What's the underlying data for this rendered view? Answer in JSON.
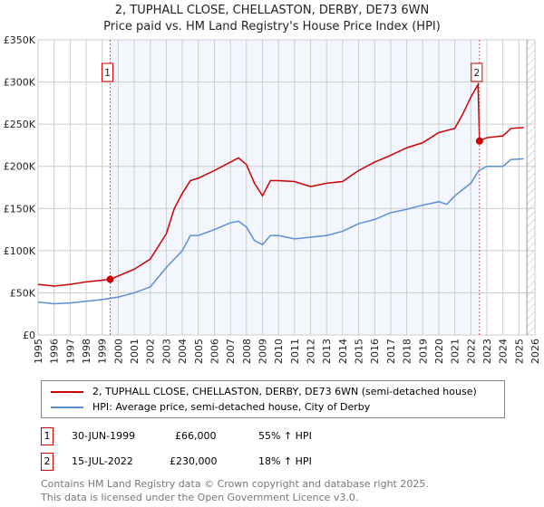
{
  "chart_data": {
    "type": "line",
    "title": "2, TUPHALL CLOSE, CHELLASTON, DERBY, DE73 6WN",
    "subtitle": "Price paid vs. HM Land Registry's House Price Index (HPI)",
    "xlim": [
      1995,
      2026
    ],
    "ylim": [
      0,
      350000
    ],
    "yticks": [
      "£0",
      "£50K",
      "£100K",
      "£150K",
      "£200K",
      "£250K",
      "£300K",
      "£350K"
    ],
    "xticks": [
      "1995",
      "1996",
      "1997",
      "1998",
      "1999",
      "2000",
      "2001",
      "2002",
      "2003",
      "2004",
      "2005",
      "2006",
      "2007",
      "2008",
      "2009",
      "2010",
      "2011",
      "2012",
      "2013",
      "2014",
      "2015",
      "2016",
      "2017",
      "2018",
      "2019",
      "2020",
      "2021",
      "2022",
      "2023",
      "2024",
      "2025",
      "2026"
    ],
    "series": [
      {
        "name": "2, TUPHALL CLOSE, CHELLASTON, DERBY, DE73 6WN (semi-detached house)",
        "color": "#cc0000",
        "x": [
          1995,
          1996,
          1997,
          1998,
          1999.5,
          2000,
          2001,
          2002,
          2003,
          2003.5,
          2004,
          2004.5,
          2005,
          2006,
          2007,
          2007.5,
          2008,
          2008.5,
          2009,
          2009.5,
          2010,
          2011,
          2012,
          2013,
          2014,
          2015,
          2016,
          2017,
          2018,
          2019,
          2020,
          2021,
          2021.5,
          2022,
          2022.45,
          2022.54,
          2023,
          2024,
          2024.5,
          2025.3
        ],
        "y": [
          60000,
          58000,
          60000,
          63000,
          66000,
          70000,
          78000,
          90000,
          120000,
          150000,
          168000,
          183000,
          186000,
          195000,
          205000,
          210000,
          202000,
          180000,
          165000,
          183000,
          183000,
          182000,
          176000,
          180000,
          182000,
          195000,
          205000,
          213000,
          222000,
          228000,
          240000,
          245000,
          262000,
          282000,
          297000,
          230000,
          234000,
          236000,
          245000,
          246000
        ]
      },
      {
        "name": "HPI: Average price, semi-detached house, City of Derby",
        "color": "#5b8fd4",
        "x": [
          1995,
          1996,
          1997,
          1998,
          1999,
          2000,
          2001,
          2002,
          2003,
          2004,
          2004.5,
          2005,
          2006,
          2007,
          2007.5,
          2008,
          2008.5,
          2009,
          2009.5,
          2010,
          2011,
          2012,
          2013,
          2014,
          2015,
          2016,
          2017,
          2018,
          2019,
          2020,
          2020.5,
          2021,
          2022,
          2022.5,
          2023,
          2024,
          2024.5,
          2025.3
        ],
        "y": [
          39000,
          37000,
          38000,
          40000,
          42000,
          45000,
          50000,
          57000,
          80000,
          100000,
          118000,
          118000,
          125000,
          133000,
          135000,
          128000,
          112000,
          107000,
          118000,
          118000,
          114000,
          116000,
          118000,
          123000,
          132000,
          137000,
          145000,
          149000,
          154000,
          158000,
          155000,
          165000,
          180000,
          195000,
          200000,
          200000,
          208000,
          209000
        ]
      }
    ],
    "sales": [
      {
        "label": "1",
        "x": 1999.5,
        "y": 66000,
        "date": "30-JUN-1999",
        "price": "£66,000",
        "hpi": "55% ↑ HPI"
      },
      {
        "label": "2",
        "x": 2022.54,
        "y": 230000,
        "date": "15-JUL-2022",
        "price": "£230,000",
        "hpi": "18% ↑ HPI"
      }
    ]
  },
  "footer": {
    "line1": "Contains HM Land Registry data © Crown copyright and database right 2025.",
    "line2": "This data is licensed under the Open Government Licence v3.0."
  }
}
